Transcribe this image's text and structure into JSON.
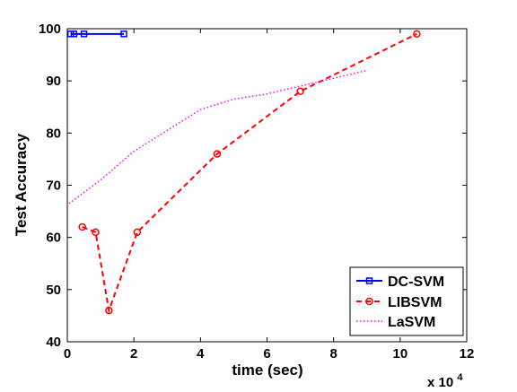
{
  "chart_data": {
    "type": "line",
    "xlabel": "time (sec)",
    "ylabel": "Test Accuracy",
    "x_multiplier_label": "x 10",
    "x_multiplier_exponent": "4",
    "xlim": [
      0,
      12
    ],
    "ylim": [
      40,
      100
    ],
    "xticks": [
      "0",
      "2",
      "4",
      "6",
      "8",
      "10",
      "12"
    ],
    "yticks": [
      "40",
      "50",
      "60",
      "70",
      "80",
      "90",
      "100"
    ],
    "grid": false,
    "legend_position": "bottom-right",
    "series": [
      {
        "name": "DC-SVM",
        "color": "#0000ff",
        "line_style": "solid",
        "marker": "square",
        "x": [
          0.1,
          0.2,
          0.5,
          1.7
        ],
        "y": [
          99,
          99,
          99,
          99
        ]
      },
      {
        "name": "LIBSVM",
        "color": "#ff0000",
        "line_style": "dashed",
        "marker": "circle",
        "x": [
          0.45,
          0.85,
          1.25,
          2.1,
          4.5,
          7.0,
          10.5
        ],
        "y": [
          62,
          61,
          46,
          61,
          76,
          88,
          99
        ]
      },
      {
        "name": "LaSVM",
        "color": "#ff00ff",
        "line_style": "dotted",
        "marker": "none",
        "x": [
          0.05,
          1.0,
          2.0,
          3.0,
          4.0,
          5.0,
          6.0,
          7.0,
          8.0,
          9.0
        ],
        "y": [
          66.5,
          71,
          76.5,
          80.5,
          84.5,
          86.5,
          87.5,
          89,
          90.5,
          92
        ]
      }
    ]
  }
}
